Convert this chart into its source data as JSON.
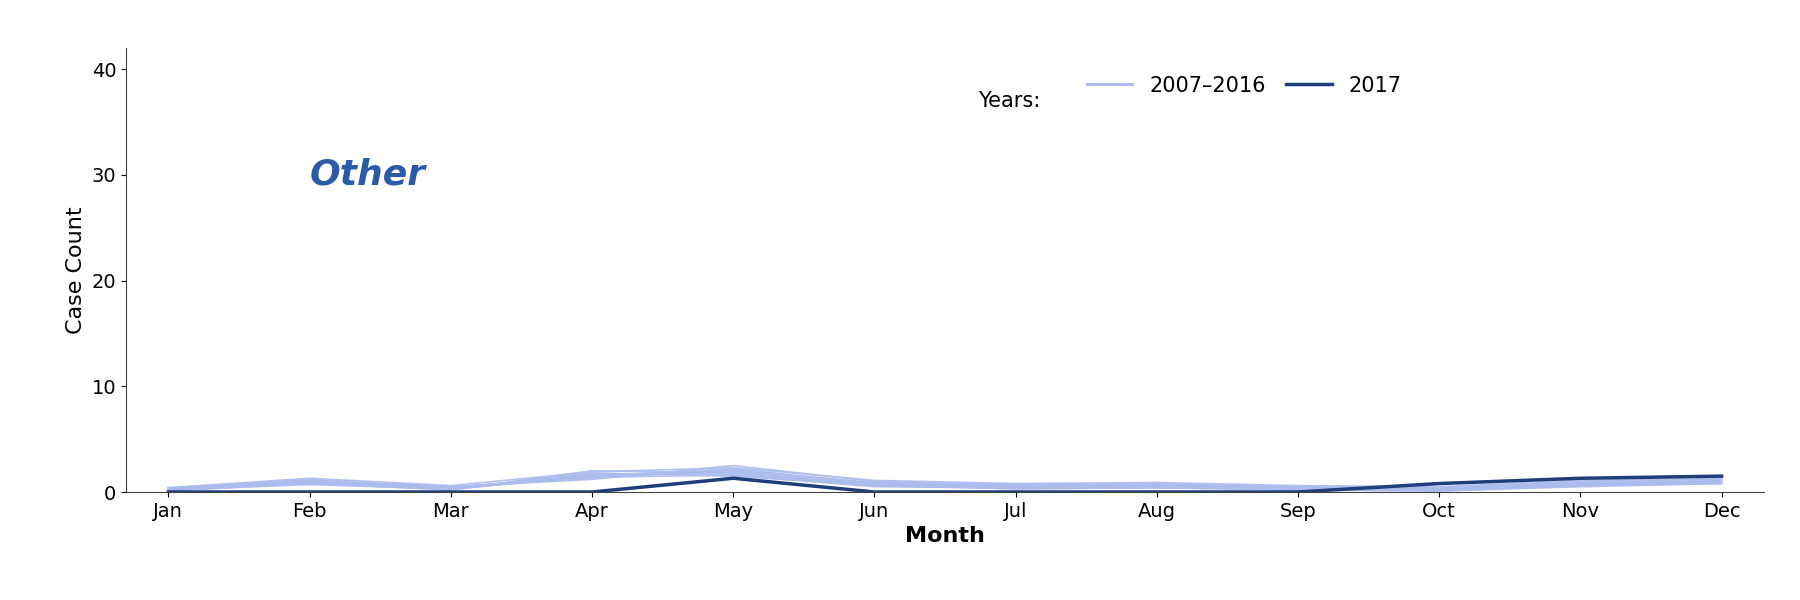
{
  "title": "Other",
  "title_color": "#2B5BA8",
  "xlabel": "Month",
  "ylabel": "Case Count",
  "months": [
    "Jan",
    "Feb",
    "Mar",
    "Apr",
    "May",
    "Jun",
    "Jul",
    "Aug",
    "Sep",
    "Oct",
    "Nov",
    "Dec"
  ],
  "ylim": [
    0,
    42
  ],
  "yticks": [
    0,
    10,
    20,
    30,
    40
  ],
  "historical_lines": [
    [
      0.3,
      1.0,
      0.4,
      1.5,
      2.2,
      0.8,
      0.5,
      0.6,
      0.4,
      0.3,
      0.8,
      1.0
    ],
    [
      0.2,
      0.8,
      0.3,
      1.8,
      1.5,
      0.6,
      0.4,
      0.5,
      0.3,
      0.2,
      0.6,
      0.9
    ],
    [
      0.4,
      1.2,
      0.5,
      1.2,
      2.5,
      1.0,
      0.7,
      0.8,
      0.5,
      0.4,
      1.0,
      1.2
    ],
    [
      0.1,
      0.9,
      0.2,
      2.0,
      1.8,
      0.7,
      0.3,
      0.4,
      0.2,
      0.1,
      0.5,
      0.8
    ],
    [
      0.3,
      1.1,
      0.4,
      1.6,
      2.0,
      0.9,
      0.6,
      0.7,
      0.4,
      0.3,
      0.9,
      1.1
    ],
    [
      0.2,
      0.7,
      0.3,
      1.4,
      1.6,
      0.5,
      0.4,
      0.5,
      0.3,
      0.2,
      0.7,
      0.9
    ],
    [
      0.4,
      1.3,
      0.6,
      1.9,
      2.3,
      1.1,
      0.8,
      0.9,
      0.6,
      0.5,
      1.1,
      1.3
    ],
    [
      0.1,
      0.8,
      0.2,
      1.7,
      1.7,
      0.6,
      0.3,
      0.4,
      0.2,
      0.1,
      0.6,
      0.8
    ],
    [
      0.3,
      1.0,
      0.5,
      1.3,
      2.1,
      0.8,
      0.5,
      0.6,
      0.4,
      0.3,
      0.8,
      1.0
    ],
    [
      0.2,
      0.9,
      0.3,
      1.5,
      1.9,
      0.7,
      0.4,
      0.5,
      0.3,
      0.2,
      0.7,
      0.9
    ]
  ],
  "line_2017": [
    0.0,
    0.0,
    0.0,
    0.0,
    1.3,
    0.0,
    0.0,
    0.0,
    0.0,
    0.8,
    1.3,
    1.5
  ],
  "historical_color": "#AABBEE",
  "line_2017_color": "#1F3F7A",
  "historical_linewidth": 1.2,
  "line_2017_linewidth": 2.5,
  "legend_years_label": "Years:",
  "legend_hist_label": "2007–2016",
  "legend_2017_label": "2017",
  "background_color": "#FFFFFF",
  "title_fontsize": 26,
  "label_fontsize": 16,
  "tick_fontsize": 14,
  "legend_fontsize": 15
}
